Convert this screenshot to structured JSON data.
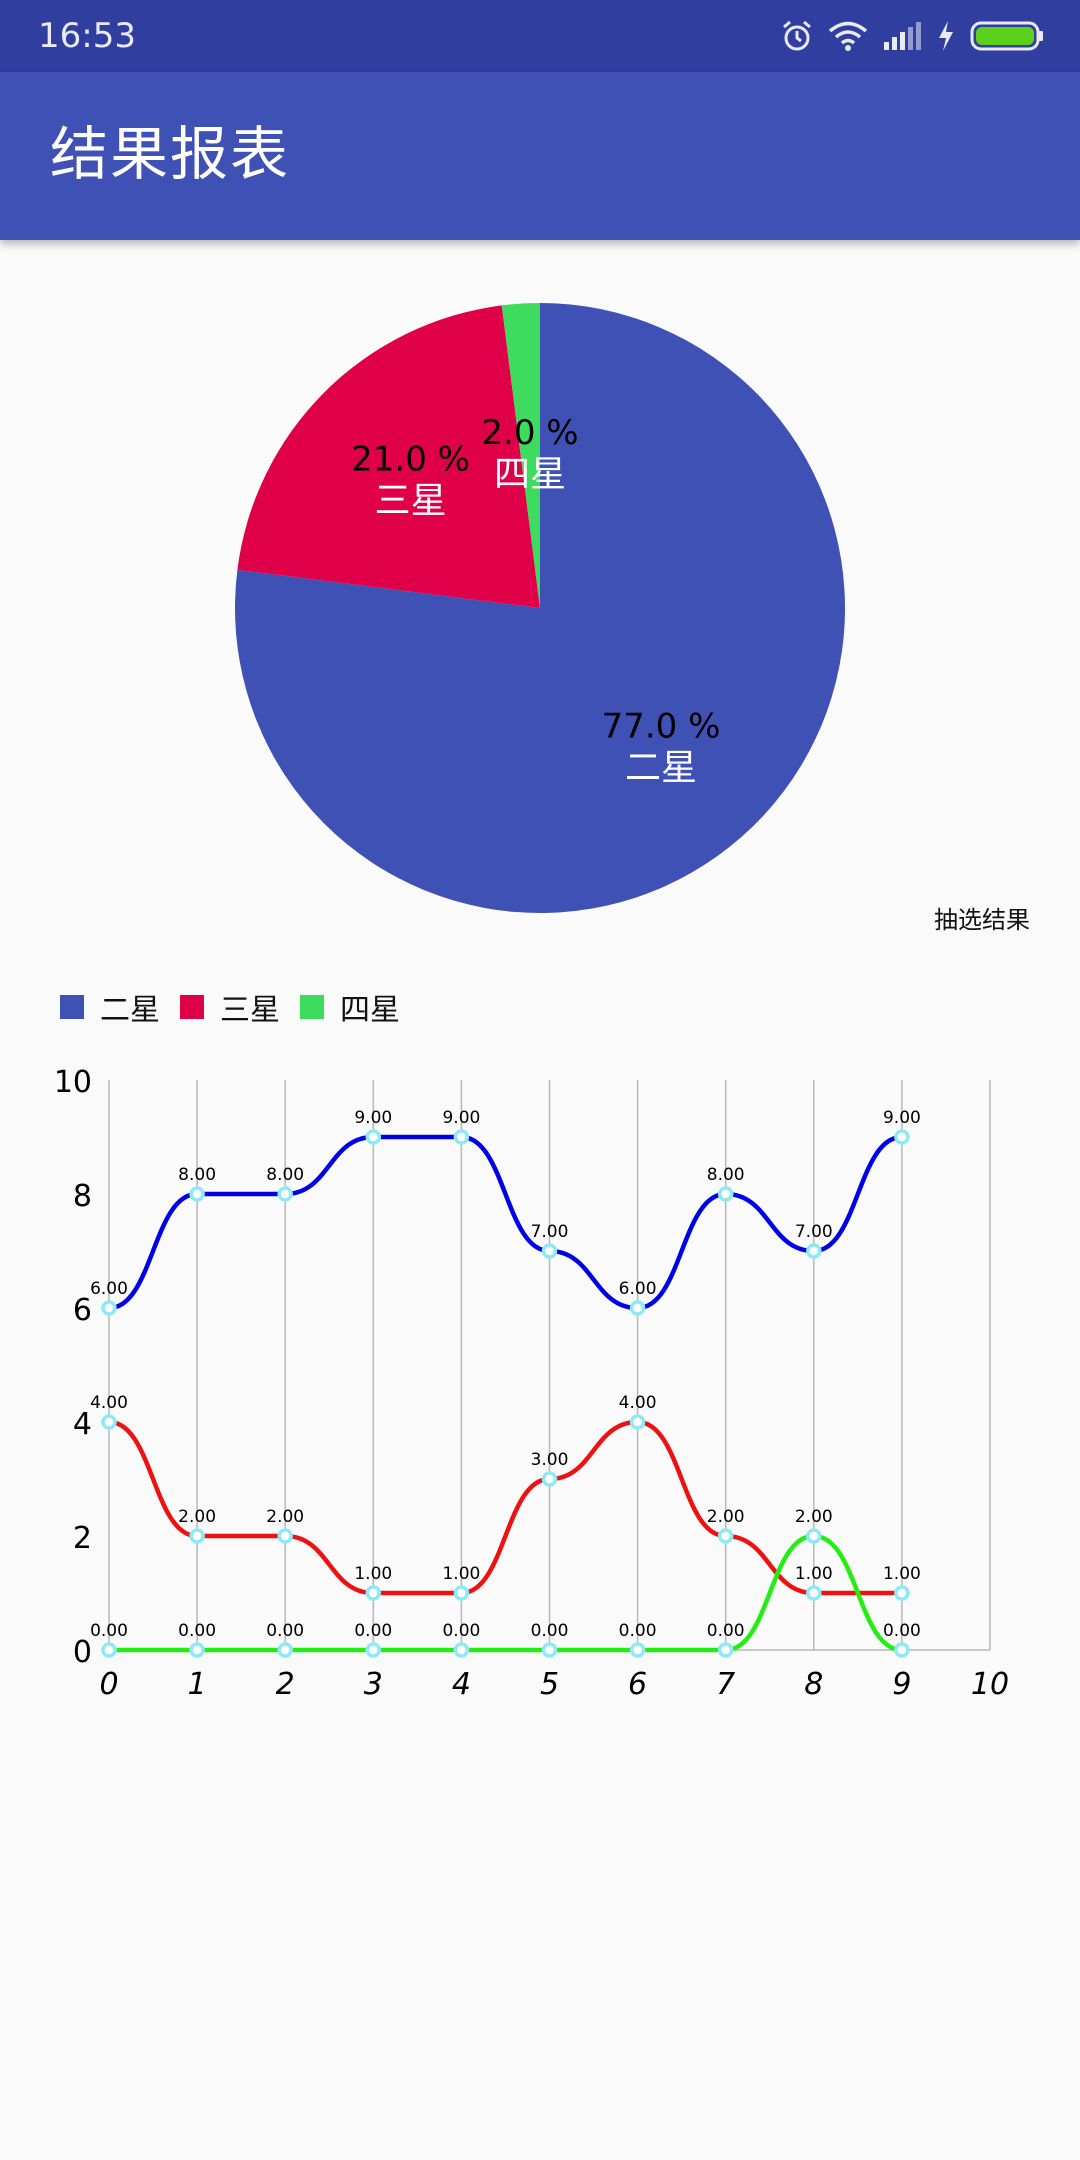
{
  "status_bar": {
    "time": "16:53",
    "icons": [
      "alarm-icon",
      "wifi-icon",
      "signal-icon",
      "charging-icon",
      "battery-icon"
    ]
  },
  "app_bar": {
    "title": "结果报表"
  },
  "colors": {
    "primary": "#3f51b5",
    "primary_dark": "#303f9f",
    "two_star": "#3f51b5",
    "three_star": "#e00049",
    "four_star": "#3ddc5e",
    "line_two": "#0000e6",
    "line_three": "#ee1111",
    "line_four": "#22ee11",
    "point_marker": "#8ee9f5"
  },
  "chart_data": [
    {
      "type": "pie",
      "labels": [
        "二星",
        "三星",
        "四星"
      ],
      "values": [
        77.0,
        21.0,
        2.0
      ],
      "value_labels": [
        "77.0 %",
        "21.0 %",
        "2.0 %"
      ],
      "colors": [
        "#3f51b5",
        "#e00049",
        "#3ddc5e"
      ],
      "description": "抽选结果",
      "legend": {
        "placement": "bottom-left",
        "entries": [
          "二星",
          "三星",
          "四星"
        ]
      }
    },
    {
      "type": "line",
      "x": [
        0,
        1,
        2,
        3,
        4,
        5,
        6,
        7,
        8,
        9
      ],
      "x_ticks": [
        "0",
        "1",
        "2",
        "3",
        "4",
        "5",
        "6",
        "7",
        "8",
        "9",
        "10"
      ],
      "y_ticks": [
        "0",
        "2",
        "4",
        "6",
        "8",
        "10"
      ],
      "xlim": [
        0,
        10
      ],
      "ylim": [
        0,
        10
      ],
      "grid": "vertical",
      "curve": "smooth",
      "series": [
        {
          "values": [
            6,
            8,
            8,
            9,
            9,
            7,
            6,
            8,
            7,
            9
          ],
          "labels": [
            "6.00",
            "8.00",
            "8.00",
            "9.00",
            "9.00",
            "7.00",
            "6.00",
            "8.00",
            "7.00",
            "9.00"
          ],
          "color": "#0000e6"
        },
        {
          "values": [
            4,
            2,
            2,
            1,
            1,
            3,
            4,
            2,
            1,
            1
          ],
          "labels": [
            "4.00",
            "2.00",
            "2.00",
            "1.00",
            "1.00",
            "3.00",
            "4.00",
            "2.00",
            "1.00",
            "1.00"
          ],
          "color": "#ee1111"
        },
        {
          "values": [
            0,
            0,
            0,
            0,
            0,
            0,
            0,
            0,
            2,
            0
          ],
          "labels": [
            "0.00",
            "0.00",
            "0.00",
            "0.00",
            "0.00",
            "0.00",
            "0.00",
            "0.00",
            "2.00",
            "0.00"
          ],
          "color": "#22ee11"
        }
      ]
    }
  ]
}
